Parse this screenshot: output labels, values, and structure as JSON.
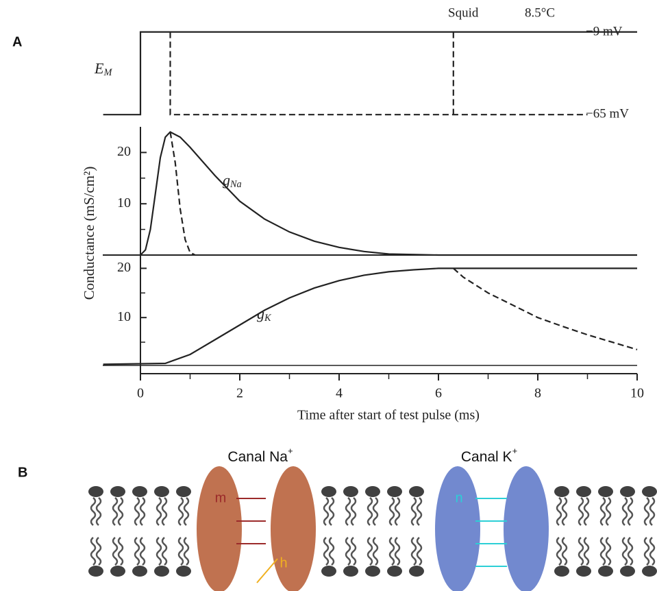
{
  "labels": {
    "panel_a": "A",
    "panel_b": "B"
  },
  "chart_data": [
    {
      "type": "line",
      "annotations": {
        "species": "Squid",
        "temperature": "8.5°C",
        "trace_label": {
          "text": "E",
          "subscript": "M"
        },
        "high_level": "−9 mV",
        "low_level": "−65 mV"
      },
      "xlim": [
        -0.75,
        10
      ],
      "ylim": [
        -70,
        -5
      ],
      "series": [
        {
          "style": "solid",
          "color": "#222222",
          "x": [
            -0.75,
            0,
            0,
            10
          ],
          "values": [
            -65,
            -65,
            -9,
            -9
          ]
        },
        {
          "style": "dashed",
          "color": "#222222",
          "x": [
            0.6,
            0.6,
            9
          ],
          "values": [
            -9,
            -65,
            -65
          ]
        },
        {
          "style": "dashed",
          "color": "#222222",
          "x": [
            6.3,
            6.3
          ],
          "values": [
            -9,
            -65
          ]
        }
      ]
    },
    {
      "type": "line",
      "ylabel": "Conductance (mS/cm²)",
      "curve_label": {
        "text": "g",
        "subscript": "Na"
      },
      "xlim": [
        -0.75,
        10
      ],
      "ylim": [
        0,
        25
      ],
      "yticks": [
        10,
        20
      ],
      "series": [
        {
          "style": "solid",
          "color": "#222222",
          "x": [
            0,
            0.1,
            0.2,
            0.3,
            0.4,
            0.5,
            0.6,
            0.8,
            1,
            1.5,
            2,
            2.5,
            3,
            3.5,
            4,
            4.5,
            5,
            6,
            10
          ],
          "values": [
            0,
            1,
            5,
            12,
            19,
            23,
            24,
            23,
            21,
            15.5,
            10.5,
            7,
            4.5,
            2.7,
            1.5,
            0.7,
            0.2,
            0,
            0
          ]
        },
        {
          "style": "dashed",
          "color": "#222222",
          "x": [
            0.6,
            0.7,
            0.8,
            0.9,
            1.0,
            1.1
          ],
          "values": [
            24,
            18,
            9,
            3,
            0.5,
            0
          ]
        }
      ]
    },
    {
      "type": "line",
      "curve_label": {
        "text": "g",
        "subscript": "K"
      },
      "xlabel": "Time after start of test pulse (ms)",
      "xlim": [
        -0.75,
        10
      ],
      "ylim": [
        0,
        22
      ],
      "yticks": [
        10,
        20
      ],
      "xticks": [
        0,
        2,
        4,
        6,
        8,
        10
      ],
      "series": [
        {
          "style": "solid",
          "color": "#222222",
          "x": [
            -0.75,
            0.5,
            1,
            1.5,
            2,
            2.5,
            3,
            3.5,
            4,
            4.5,
            5,
            5.5,
            6,
            10
          ],
          "values": [
            0.5,
            0.7,
            2.5,
            5.5,
            8.5,
            11.5,
            14,
            16,
            17.5,
            18.6,
            19.3,
            19.7,
            20,
            20
          ]
        },
        {
          "style": "dashed",
          "color": "#222222",
          "x": [
            6.3,
            6.5,
            7,
            7.5,
            8,
            8.5,
            9,
            9.5,
            10
          ],
          "values": [
            20,
            18.2,
            15,
            12.5,
            10,
            8.2,
            6.5,
            5,
            3.5
          ]
        }
      ]
    }
  ],
  "diagram": {
    "channels": [
      {
        "label": "Canal Na",
        "superscript": "+",
        "gates": [
          "m",
          "h"
        ]
      },
      {
        "label": "Canal K",
        "superscript": "+",
        "gates": [
          "n"
        ]
      }
    ]
  }
}
